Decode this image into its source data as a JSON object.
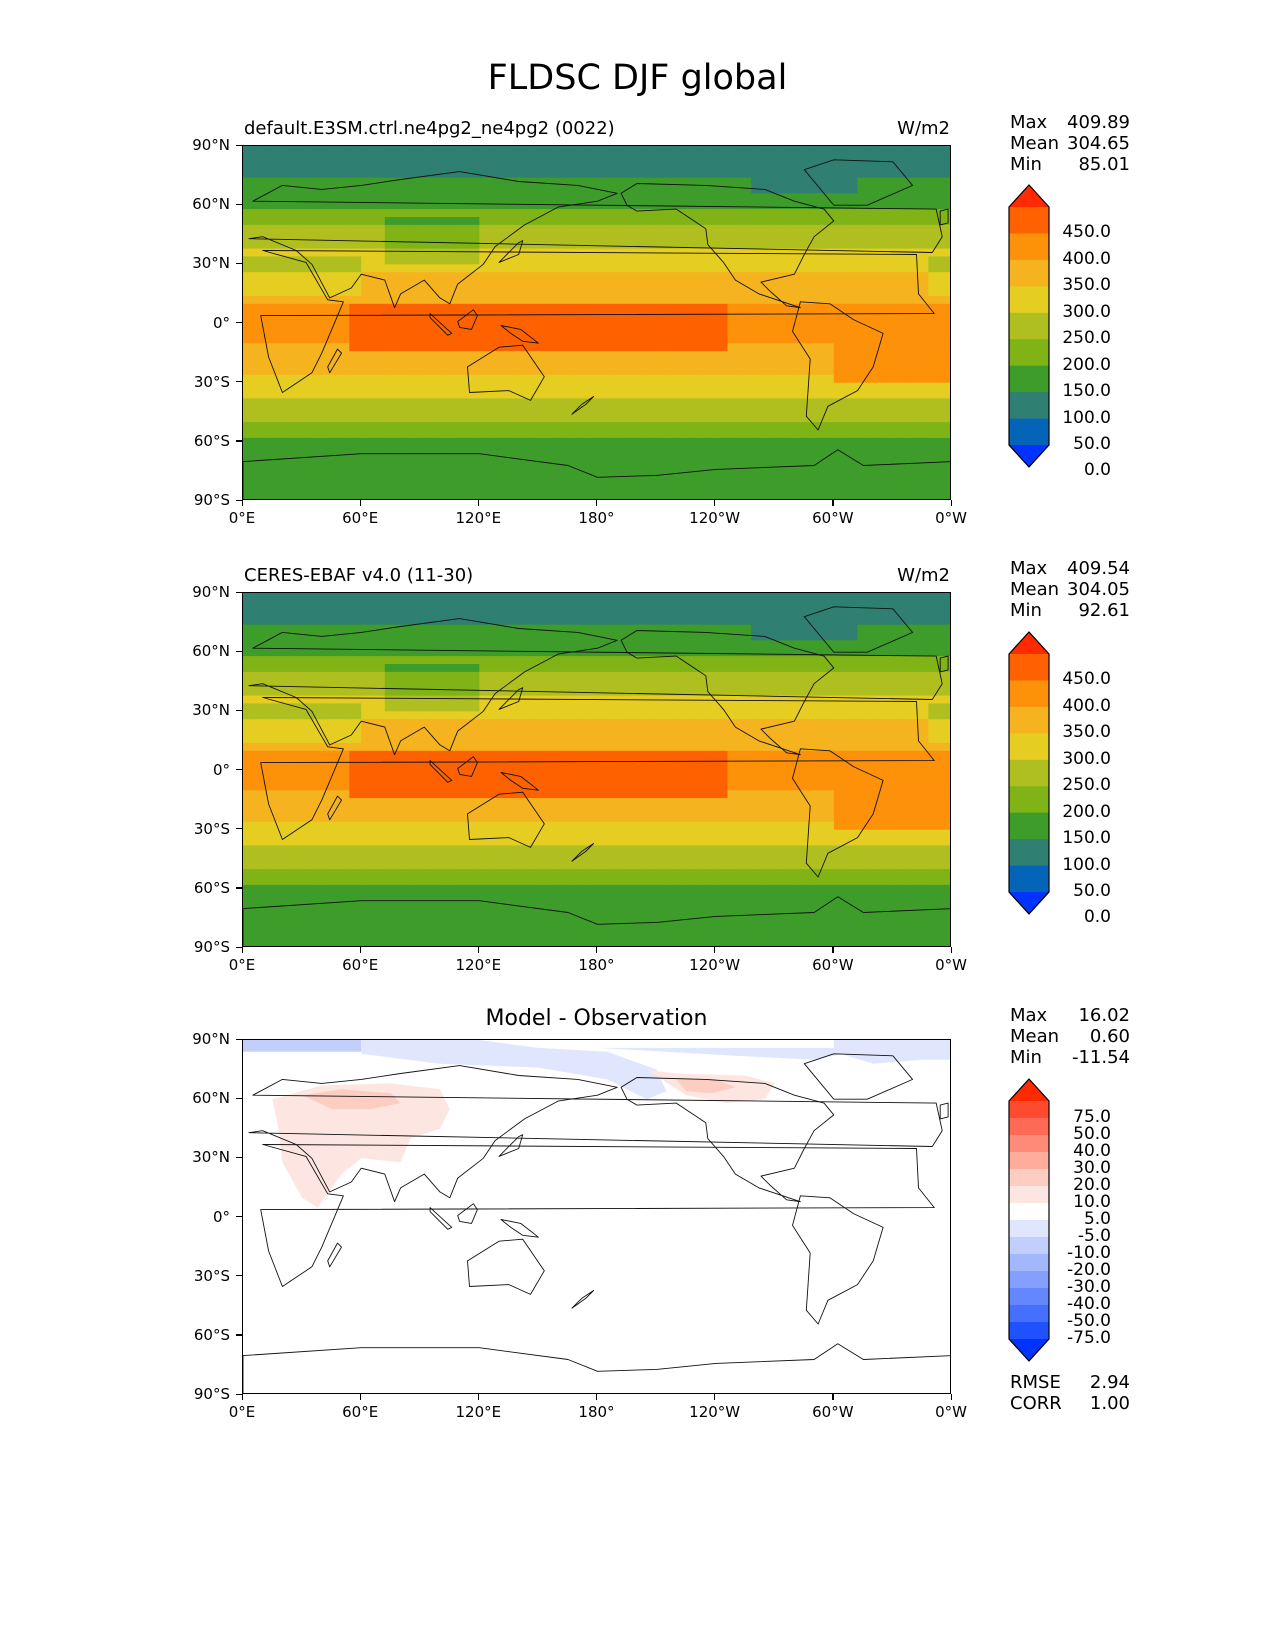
{
  "figure": {
    "title": "FLDSC DJF global"
  },
  "axes": {
    "lat_ticks": [
      "90°N",
      "60°N",
      "30°N",
      "0°",
      "30°S",
      "60°S",
      "90°S"
    ],
    "lon_ticks": [
      "0°E",
      "60°E",
      "120°E",
      "180°",
      "120°W",
      "60°W",
      "0°W"
    ]
  },
  "panels": [
    {
      "left_title": "default.E3SM.ctrl.ne4pg2_ne4pg2 (0022)",
      "right_title": "W/m2",
      "center_title": "",
      "stats": [
        {
          "label": "Max",
          "value": "409.89"
        },
        {
          "label": "Mean",
          "value": "304.65"
        },
        {
          "label": "Min",
          "value": "85.01"
        }
      ],
      "colorbar_levels": [
        "450.0",
        "400.0",
        "350.0",
        "300.0",
        "250.0",
        "200.0",
        "150.0",
        "100.0",
        "50.0",
        "0.0"
      ],
      "colorbar_colors": [
        "#ff2a00",
        "#fe6200",
        "#fd9109",
        "#f5b41f",
        "#e5ce21",
        "#b0bf20",
        "#7fb316",
        "#3e9c2a",
        "#2f7f72",
        "#0465b8",
        "#0033ff"
      ]
    },
    {
      "left_title": "CERES-EBAF v4.0 (11-30)",
      "right_title": "W/m2",
      "center_title": "",
      "stats": [
        {
          "label": "Max",
          "value": "409.54"
        },
        {
          "label": "Mean",
          "value": "304.05"
        },
        {
          "label": "Min",
          "value": "92.61"
        }
      ],
      "colorbar_levels": [
        "450.0",
        "400.0",
        "350.0",
        "300.0",
        "250.0",
        "200.0",
        "150.0",
        "100.0",
        "50.0",
        "0.0"
      ],
      "colorbar_colors": [
        "#ff2a00",
        "#fe6200",
        "#fd9109",
        "#f5b41f",
        "#e5ce21",
        "#b0bf20",
        "#7fb316",
        "#3e9c2a",
        "#2f7f72",
        "#0465b8",
        "#0033ff"
      ]
    },
    {
      "left_title": "",
      "right_title": "",
      "center_title": "Model - Observation",
      "stats": [
        {
          "label": "Max",
          "value": "16.02"
        },
        {
          "label": "Mean",
          "value": "0.60"
        },
        {
          "label": "Min",
          "value": "-11.54"
        }
      ],
      "extra_stats": [
        {
          "label": "RMSE",
          "value": "2.94"
        },
        {
          "label": "CORR",
          "value": "1.00"
        }
      ],
      "colorbar_levels": [
        "75.0",
        "50.0",
        "40.0",
        "30.0",
        "20.0",
        "10.0",
        "5.0",
        "-5.0",
        "-10.0",
        "-20.0",
        "-30.0",
        "-40.0",
        "-50.0",
        "-75.0"
      ],
      "colorbar_colors": [
        "#ff2a00",
        "#fe4a2e",
        "#fe6a55",
        "#fe8b78",
        "#feac9c",
        "#fdcdc2",
        "#fde6e1",
        "#ffffff",
        "#e0e6fd",
        "#c2cffd",
        "#a3b7fd",
        "#849ffd",
        "#6587fe",
        "#466ffe",
        "#2051fe",
        "#0033ff"
      ]
    }
  ]
}
